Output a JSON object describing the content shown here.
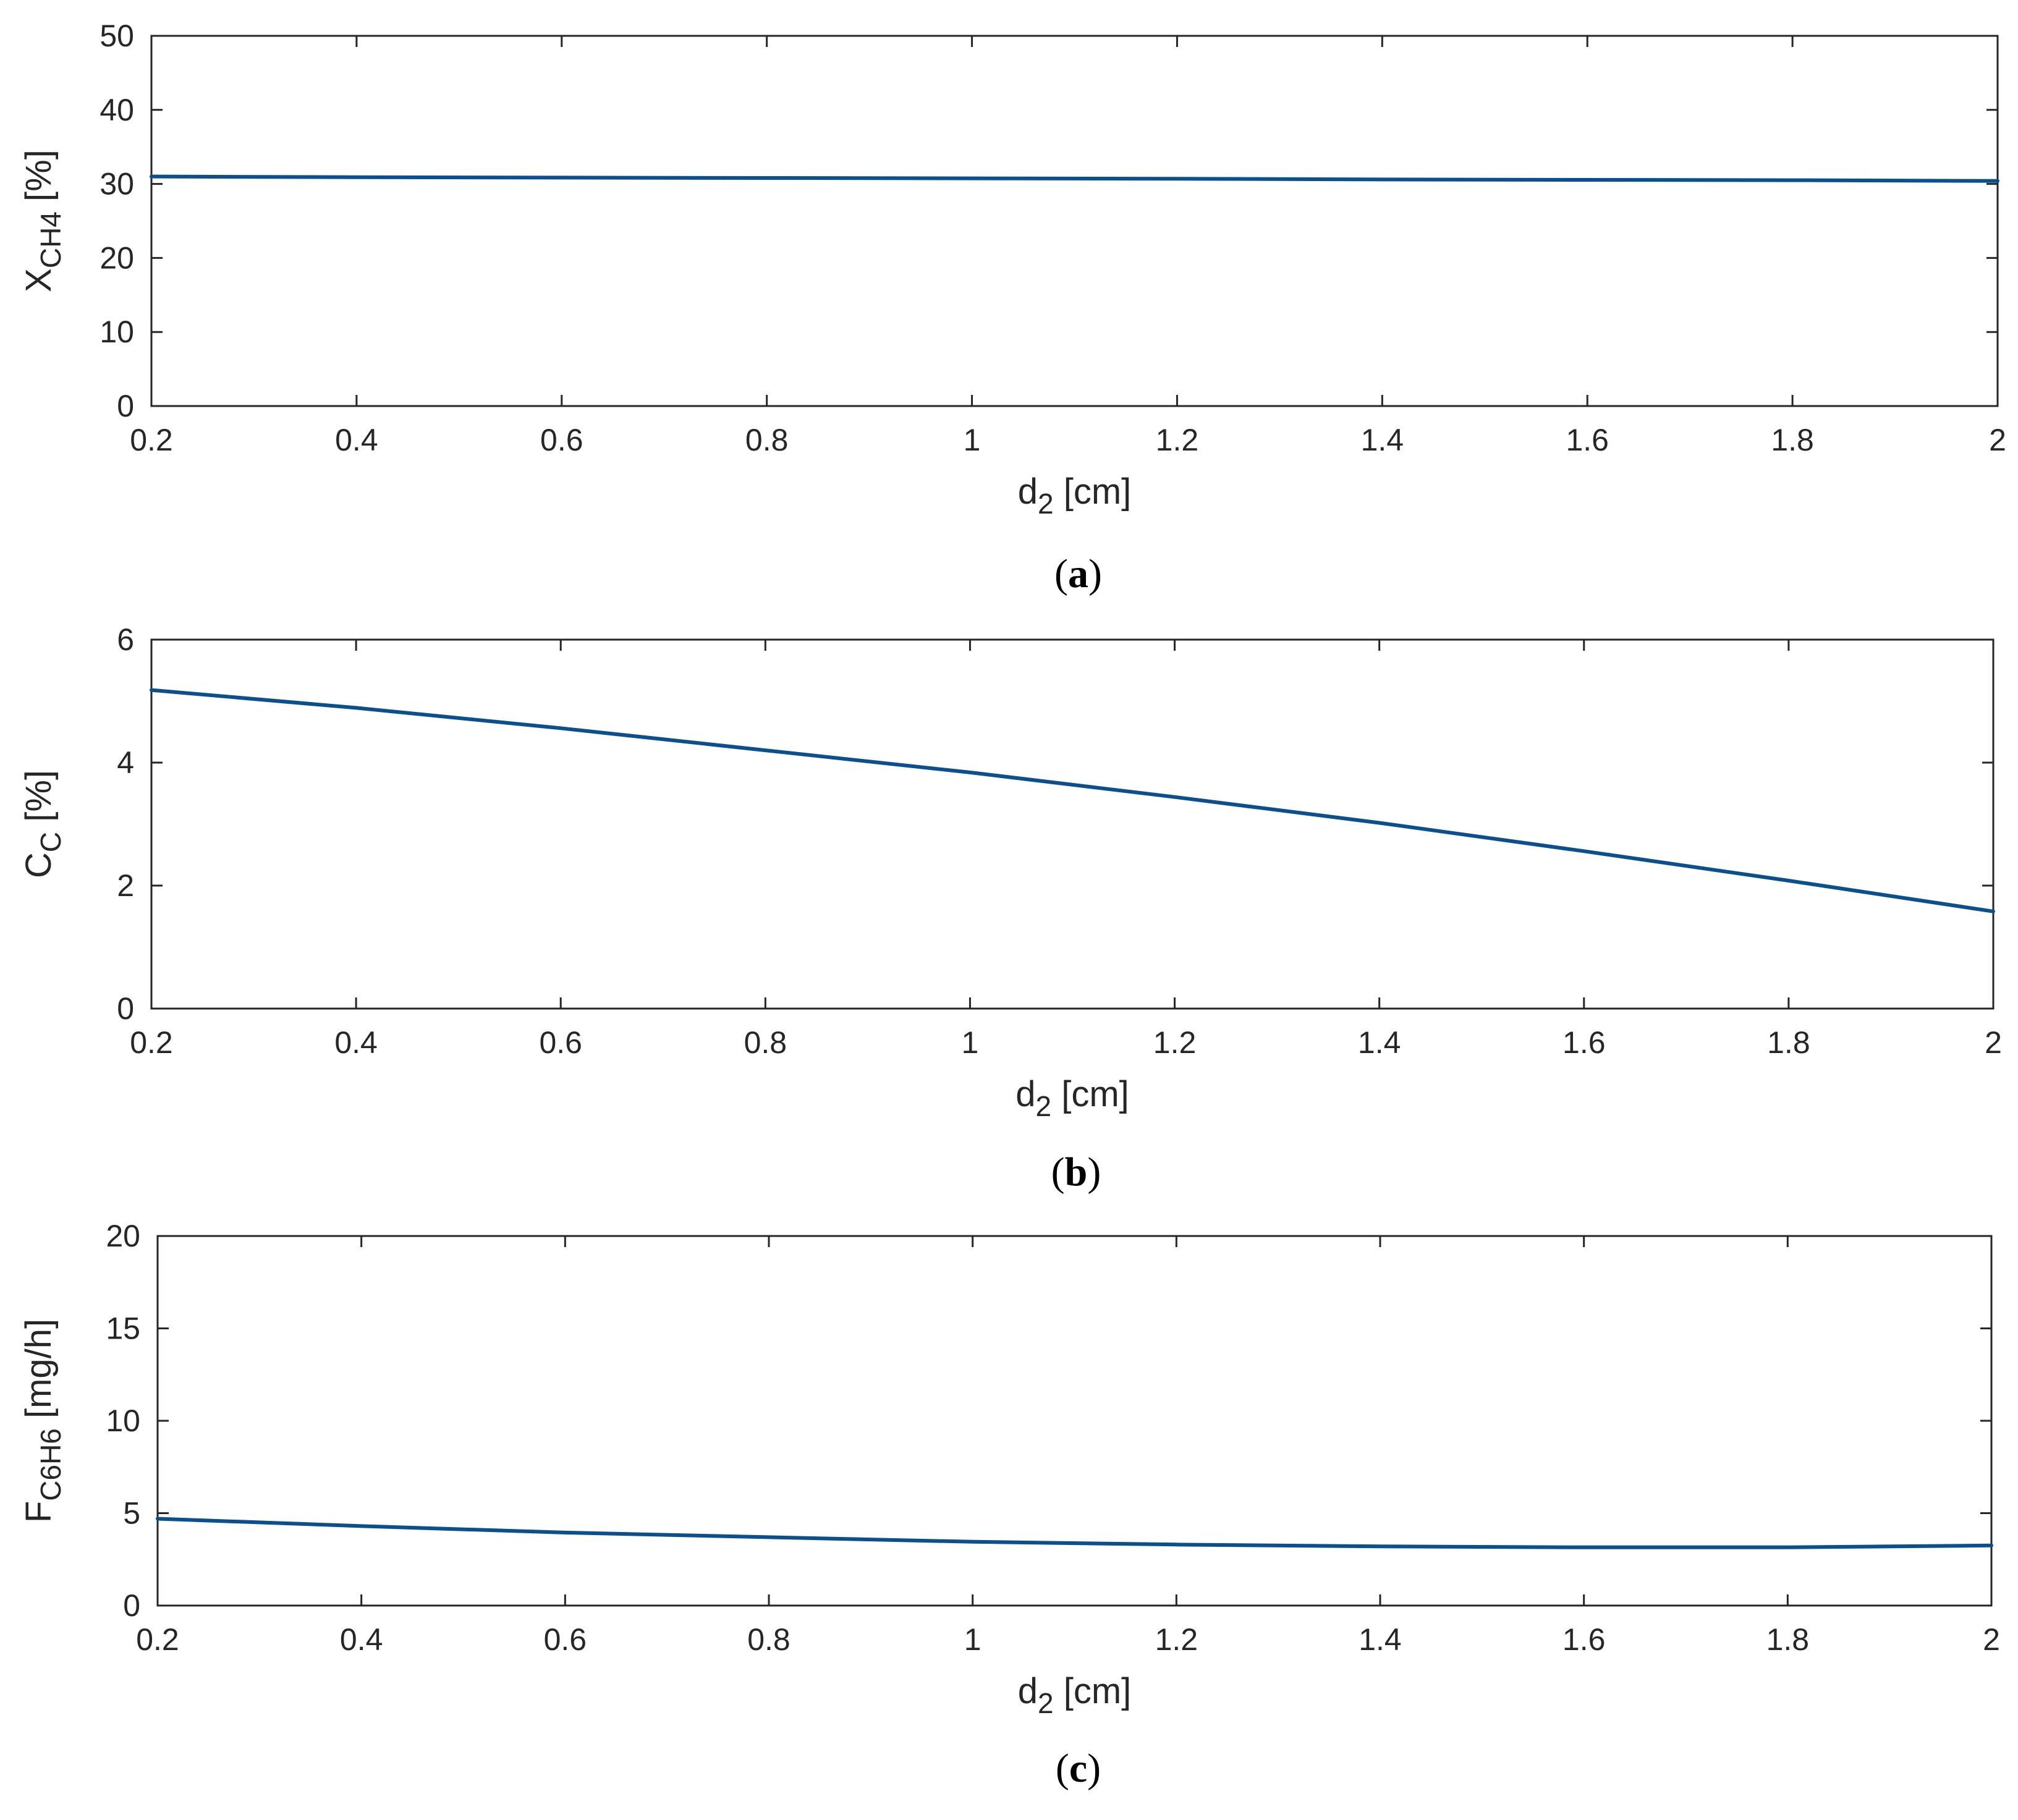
{
  "colors": {
    "line": "#0b4f8f",
    "axis": "#262626",
    "background": "#ffffff"
  },
  "chart_data": [
    {
      "panel": "a",
      "caption_letter": "a",
      "type": "line",
      "xlabel_main": "d",
      "xlabel_sub": "2",
      "xlabel_rest": " [cm]",
      "ylabel_main": "X",
      "ylabel_sub": "CH4",
      "ylabel_rest": " [%]",
      "xlim": [
        0.2,
        2
      ],
      "ylim": [
        0,
        50
      ],
      "xticks": [
        0.2,
        0.4,
        0.6,
        0.8,
        1,
        1.2,
        1.4,
        1.6,
        1.8,
        2
      ],
      "xtick_labels": [
        "0.2",
        "0.4",
        "0.6",
        "0.8",
        "1",
        "1.2",
        "1.4",
        "1.6",
        "1.8",
        "2"
      ],
      "yticks": [
        0,
        10,
        20,
        30,
        40,
        50
      ],
      "ytick_labels": [
        "0",
        "10",
        "20",
        "30",
        "40",
        "50"
      ],
      "grid": false,
      "series": [
        {
          "x": [
            0.2,
            0.4,
            0.6,
            0.8,
            1.0,
            1.2,
            1.4,
            1.6,
            1.8,
            2.0
          ],
          "values": [
            31.0,
            30.9,
            30.85,
            30.8,
            30.75,
            30.7,
            30.6,
            30.55,
            30.5,
            30.4
          ]
        }
      ]
    },
    {
      "panel": "b",
      "caption_letter": "b",
      "type": "line",
      "xlabel_main": "d",
      "xlabel_sub": "2",
      "xlabel_rest": " [cm]",
      "ylabel_main": "C",
      "ylabel_sub": "C",
      "ylabel_rest": " [%]",
      "xlim": [
        0.2,
        2
      ],
      "ylim": [
        0,
        6
      ],
      "xticks": [
        0.2,
        0.4,
        0.6,
        0.8,
        1,
        1.2,
        1.4,
        1.6,
        1.8,
        2
      ],
      "xtick_labels": [
        "0.2",
        "0.4",
        "0.6",
        "0.8",
        "1",
        "1.2",
        "1.4",
        "1.6",
        "1.8",
        "2"
      ],
      "yticks": [
        0,
        2,
        4,
        6
      ],
      "ytick_labels": [
        "0",
        "2",
        "4",
        "6"
      ],
      "grid": false,
      "series": [
        {
          "x": [
            0.2,
            0.4,
            0.6,
            0.8,
            1.0,
            1.2,
            1.4,
            1.6,
            1.8,
            2.0
          ],
          "values": [
            5.18,
            4.89,
            4.56,
            4.2,
            3.84,
            3.44,
            3.02,
            2.56,
            2.08,
            1.58
          ]
        }
      ]
    },
    {
      "panel": "c",
      "caption_letter": "c",
      "type": "line",
      "xlabel_main": "d",
      "xlabel_sub": "2",
      "xlabel_rest": " [cm]",
      "ylabel_main": "F",
      "ylabel_sub": "C6H6",
      "ylabel_rest": " [mg/h]",
      "xlim": [
        0.2,
        2
      ],
      "ylim": [
        0,
        20
      ],
      "xticks": [
        0.2,
        0.4,
        0.6,
        0.8,
        1,
        1.2,
        1.4,
        1.6,
        1.8,
        2
      ],
      "xtick_labels": [
        "0.2",
        "0.4",
        "0.6",
        "0.8",
        "1",
        "1.2",
        "1.4",
        "1.6",
        "1.8",
        "2"
      ],
      "yticks": [
        0,
        5,
        10,
        15,
        20
      ],
      "ytick_labels": [
        "0",
        "5",
        "10",
        "15",
        "20"
      ],
      "grid": false,
      "series": [
        {
          "x": [
            0.2,
            0.4,
            0.6,
            0.8,
            1.0,
            1.2,
            1.4,
            1.6,
            1.8,
            2.0
          ],
          "values": [
            4.7,
            4.3,
            3.95,
            3.7,
            3.45,
            3.3,
            3.2,
            3.15,
            3.15,
            3.25
          ]
        }
      ]
    }
  ]
}
